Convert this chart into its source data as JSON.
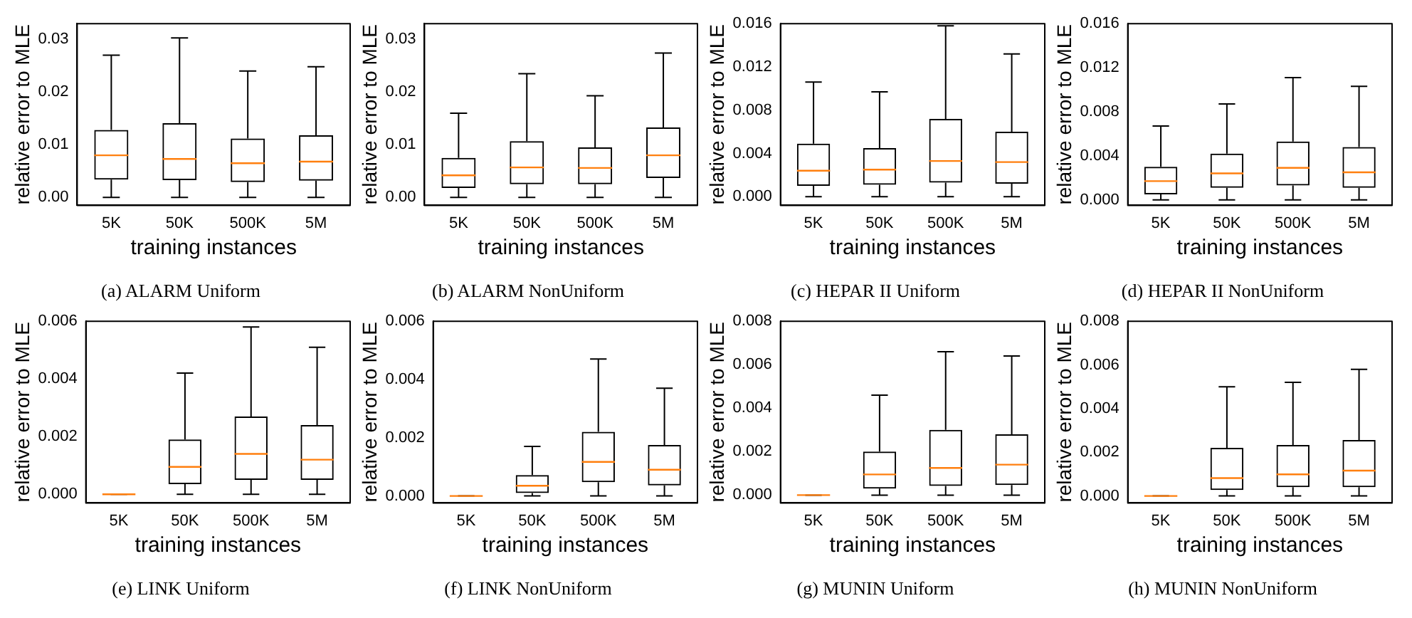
{
  "chart_data": [
    {
      "type": "box",
      "title": "(a) ALARM Uniform",
      "xlabel": "training instances",
      "ylabel": "relative error to MLE",
      "categories": [
        "5K",
        "50K",
        "500K",
        "5M"
      ],
      "ylim": [
        -0.0015,
        0.033
      ],
      "yticks": [
        {
          "value": 0,
          "label": "0.00"
        },
        {
          "value": 0.01,
          "label": "0.01"
        },
        {
          "value": 0.02,
          "label": "0.02"
        },
        {
          "value": 0.03,
          "label": "0.03"
        }
      ],
      "boxes": [
        {
          "low": 0,
          "q1": 0.0034,
          "median": 0.008,
          "q3": 0.0128,
          "high": 0.027
        },
        {
          "low": 0,
          "q1": 0.0033,
          "median": 0.0073,
          "q3": 0.0141,
          "high": 0.0303
        },
        {
          "low": 0,
          "q1": 0.0029,
          "median": 0.0065,
          "q3": 0.0112,
          "high": 0.024
        },
        {
          "low": 0,
          "q1": 0.0032,
          "median": 0.0068,
          "q3": 0.0118,
          "high": 0.0248
        }
      ]
    },
    {
      "type": "box",
      "title": "(b) ALARM NonUniform",
      "xlabel": "training instances",
      "ylabel": "relative error to MLE",
      "categories": [
        "5K",
        "50K",
        "500K",
        "5M"
      ],
      "ylim": [
        -0.0015,
        0.033
      ],
      "yticks": [
        {
          "value": 0,
          "label": "0.00"
        },
        {
          "value": 0.01,
          "label": "0.01"
        },
        {
          "value": 0.02,
          "label": "0.02"
        },
        {
          "value": 0.03,
          "label": "0.03"
        }
      ],
      "boxes": [
        {
          "low": 0,
          "q1": 0.0018,
          "median": 0.0042,
          "q3": 0.0075,
          "high": 0.016
        },
        {
          "low": 0,
          "q1": 0.0025,
          "median": 0.0057,
          "q3": 0.0107,
          "high": 0.0235
        },
        {
          "low": 0,
          "q1": 0.0025,
          "median": 0.0056,
          "q3": 0.0095,
          "high": 0.0193
        },
        {
          "low": 0,
          "q1": 0.0037,
          "median": 0.008,
          "q3": 0.0133,
          "high": 0.0274
        }
      ]
    },
    {
      "type": "box",
      "title": "(c) HEPAR II Uniform",
      "xlabel": "training instances",
      "ylabel": "relative error to MLE",
      "categories": [
        "5K",
        "50K",
        "500K",
        "5M"
      ],
      "ylim": [
        -0.0008,
        0.016
      ],
      "yticks": [
        {
          "value": 0,
          "label": "0.000"
        },
        {
          "value": 0.004,
          "label": "0.004"
        },
        {
          "value": 0.008,
          "label": "0.008"
        },
        {
          "value": 0.012,
          "label": "0.012"
        },
        {
          "value": 0.016,
          "label": "0.016"
        }
      ],
      "boxes": [
        {
          "low": 0,
          "q1": 0.001,
          "median": 0.0024,
          "q3": 0.0049,
          "high": 0.0106
        },
        {
          "low": 0,
          "q1": 0.0011,
          "median": 0.0025,
          "q3": 0.0045,
          "high": 0.0097
        },
        {
          "low": 0,
          "q1": 0.0013,
          "median": 0.0033,
          "q3": 0.0072,
          "high": 0.0158
        },
        {
          "low": 0,
          "q1": 0.0012,
          "median": 0.0032,
          "q3": 0.006,
          "high": 0.0132
        }
      ]
    },
    {
      "type": "box",
      "title": "(d) HEPAR II NonUniform",
      "xlabel": "training instances",
      "ylabel": "relative error to MLE",
      "categories": [
        "5K",
        "50K",
        "500K",
        "5M"
      ],
      "ylim": [
        -0.0005,
        0.016
      ],
      "yticks": [
        {
          "value": 0,
          "label": "0.000"
        },
        {
          "value": 0.004,
          "label": "0.004"
        },
        {
          "value": 0.008,
          "label": "0.008"
        },
        {
          "value": 0.012,
          "label": "0.012"
        },
        {
          "value": 0.016,
          "label": "0.016"
        }
      ],
      "boxes": [
        {
          "low": 0,
          "q1": 0.0005,
          "median": 0.0017,
          "q3": 0.003,
          "high": 0.0067
        },
        {
          "low": 0,
          "q1": 0.0011,
          "median": 0.0024,
          "q3": 0.0042,
          "high": 0.0087
        },
        {
          "low": 0,
          "q1": 0.0013,
          "median": 0.0029,
          "q3": 0.0053,
          "high": 0.0111
        },
        {
          "low": 0,
          "q1": 0.0011,
          "median": 0.0025,
          "q3": 0.0048,
          "high": 0.0103
        }
      ]
    },
    {
      "type": "box",
      "title": "(e) LINK Uniform",
      "xlabel": "training instances",
      "ylabel": "relative error to MLE",
      "categories": [
        "5K",
        "50K",
        "500K",
        "5M"
      ],
      "ylim": [
        -0.0003,
        0.006
      ],
      "yticks": [
        {
          "value": 0,
          "label": "0.000"
        },
        {
          "value": 0.002,
          "label": "0.002"
        },
        {
          "value": 0.004,
          "label": "0.004"
        },
        {
          "value": 0.006,
          "label": "0.006"
        }
      ],
      "boxes": [
        {
          "low": 0,
          "q1": 0,
          "median": 0,
          "q3": 0,
          "high": 0
        },
        {
          "low": 0,
          "q1": 0.00035,
          "median": 0.00095,
          "q3": 0.0019,
          "high": 0.0042
        },
        {
          "low": 0,
          "q1": 0.0005,
          "median": 0.0014,
          "q3": 0.0027,
          "high": 0.0058
        },
        {
          "low": 0,
          "q1": 0.0005,
          "median": 0.0012,
          "q3": 0.0024,
          "high": 0.0051
        }
      ]
    },
    {
      "type": "box",
      "title": "(f) LINK NonUniform",
      "xlabel": "training instances",
      "ylabel": "relative error to MLE",
      "categories": [
        "5K",
        "50K",
        "500K",
        "5M"
      ],
      "ylim": [
        -0.00024,
        0.006
      ],
      "yticks": [
        {
          "value": 0,
          "label": "0.000"
        },
        {
          "value": 0.002,
          "label": "0.002"
        },
        {
          "value": 0.004,
          "label": "0.004"
        },
        {
          "value": 0.006,
          "label": "0.006"
        }
      ],
      "boxes": [
        {
          "low": 0,
          "q1": 0,
          "median": 0,
          "q3": 0,
          "high": 0
        },
        {
          "low": 0,
          "q1": 0.0001,
          "median": 0.00035,
          "q3": 0.00072,
          "high": 0.0017
        },
        {
          "low": 0,
          "q1": 0.00047,
          "median": 0.00117,
          "q3": 0.0022,
          "high": 0.0047
        },
        {
          "low": 0,
          "q1": 0.00036,
          "median": 0.0009,
          "q3": 0.00175,
          "high": 0.0037
        }
      ]
    },
    {
      "type": "box",
      "title": "(g) MUNIN Uniform",
      "xlabel": "training instances",
      "ylabel": "relative error to MLE",
      "categories": [
        "5K",
        "50K",
        "500K",
        "5M"
      ],
      "ylim": [
        -0.00036,
        0.008
      ],
      "yticks": [
        {
          "value": 0,
          "label": "0.000"
        },
        {
          "value": 0.002,
          "label": "0.002"
        },
        {
          "value": 0.004,
          "label": "0.004"
        },
        {
          "value": 0.006,
          "label": "0.006"
        },
        {
          "value": 0.008,
          "label": "0.008"
        }
      ],
      "boxes": [
        {
          "low": 0,
          "q1": 0,
          "median": 0,
          "q3": 0,
          "high": 0
        },
        {
          "low": 0,
          "q1": 0.0003,
          "median": 0.00095,
          "q3": 0.002,
          "high": 0.0046
        },
        {
          "low": 0,
          "q1": 0.00042,
          "median": 0.00125,
          "q3": 0.003,
          "high": 0.0066
        },
        {
          "low": 0,
          "q1": 0.00046,
          "median": 0.0014,
          "q3": 0.0028,
          "high": 0.0064
        }
      ]
    },
    {
      "type": "box",
      "title": "(h) MUNIN NonUniform",
      "xlabel": "training instances",
      "ylabel": "relative error to MLE",
      "categories": [
        "5K",
        "50K",
        "500K",
        "5M"
      ],
      "ylim": [
        -0.00032,
        0.008
      ],
      "yticks": [
        {
          "value": 0,
          "label": "0.000"
        },
        {
          "value": 0.002,
          "label": "0.002"
        },
        {
          "value": 0.004,
          "label": "0.004"
        },
        {
          "value": 0.006,
          "label": "0.006"
        },
        {
          "value": 0.008,
          "label": "0.008"
        }
      ],
      "boxes": [
        {
          "low": 0,
          "q1": 0,
          "median": 0,
          "q3": 0,
          "high": 0
        },
        {
          "low": 0,
          "q1": 0.00027,
          "median": 0.00082,
          "q3": 0.0022,
          "high": 0.005
        },
        {
          "low": 0,
          "q1": 0.0004,
          "median": 0.00099,
          "q3": 0.00233,
          "high": 0.0052
        },
        {
          "low": 0,
          "q1": 0.0004,
          "median": 0.00116,
          "q3": 0.00256,
          "high": 0.0058
        }
      ]
    }
  ]
}
